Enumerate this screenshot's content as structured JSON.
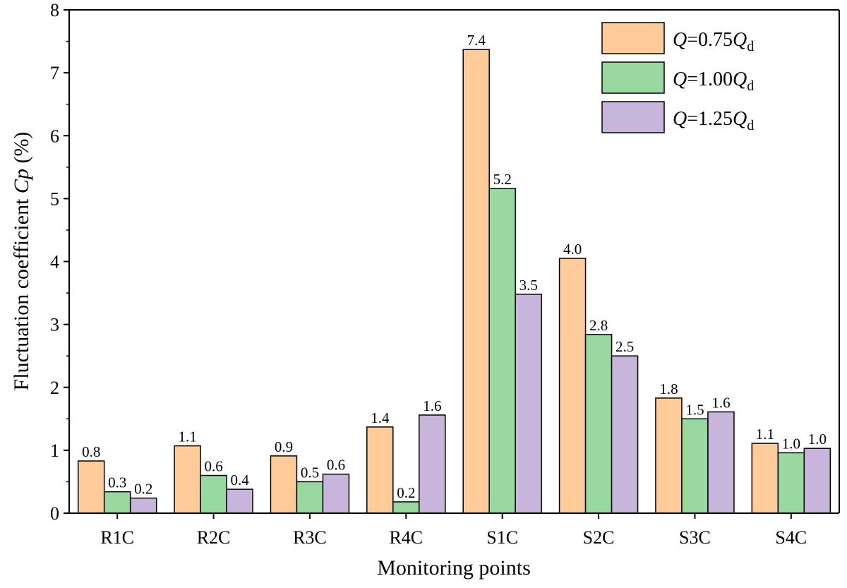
{
  "chart_data": {
    "type": "bar",
    "xlabel": "Monitoring points",
    "ylabel": {
      "prefix": "Fluctuation coefficient ",
      "symbol": "Cp",
      "suffix": " (%)"
    },
    "ylim": [
      0,
      8
    ],
    "yticks": [
      "0",
      "1",
      "2",
      "3",
      "4",
      "5",
      "6",
      "7",
      "8"
    ],
    "categories": [
      "R1C",
      "R2C",
      "R3C",
      "R4C",
      "S1C",
      "S2C",
      "S3C",
      "S4C"
    ],
    "series": [
      {
        "name": "Q=0.75Qd",
        "legend": {
          "q": "Q",
          "eq": "=0.75",
          "qd": "Q",
          "sub": "d"
        },
        "color": "#FFCC99",
        "values": [
          0.83,
          1.07,
          0.91,
          1.37,
          7.37,
          4.05,
          1.83,
          1.11
        ],
        "labels": [
          "0.8",
          "1.1",
          "0.9",
          "1.4",
          "7.4",
          "4.0",
          "1.8",
          "1.1"
        ]
      },
      {
        "name": "Q=1.00Qd",
        "legend": {
          "q": "Q",
          "eq": "=1.00",
          "qd": "Q",
          "sub": "d"
        },
        "color": "#99D9A0",
        "values": [
          0.34,
          0.6,
          0.5,
          0.18,
          5.16,
          2.84,
          1.5,
          0.96
        ],
        "labels": [
          "0.3",
          "0.6",
          "0.5",
          "0.2",
          "5.2",
          "2.8",
          "1.5",
          "1.0"
        ]
      },
      {
        "name": "Q=1.25Qd",
        "legend": {
          "q": "Q",
          "eq": "=1.25",
          "qd": "Q",
          "sub": "d"
        },
        "color": "#C7B5DB",
        "values": [
          0.24,
          0.38,
          0.62,
          1.56,
          3.48,
          2.5,
          1.61,
          1.03
        ],
        "labels": [
          "0.2",
          "0.4",
          "0.6",
          "1.6",
          "3.5",
          "2.5",
          "1.6",
          "1.0"
        ]
      }
    ],
    "legend_position": "top-right"
  }
}
